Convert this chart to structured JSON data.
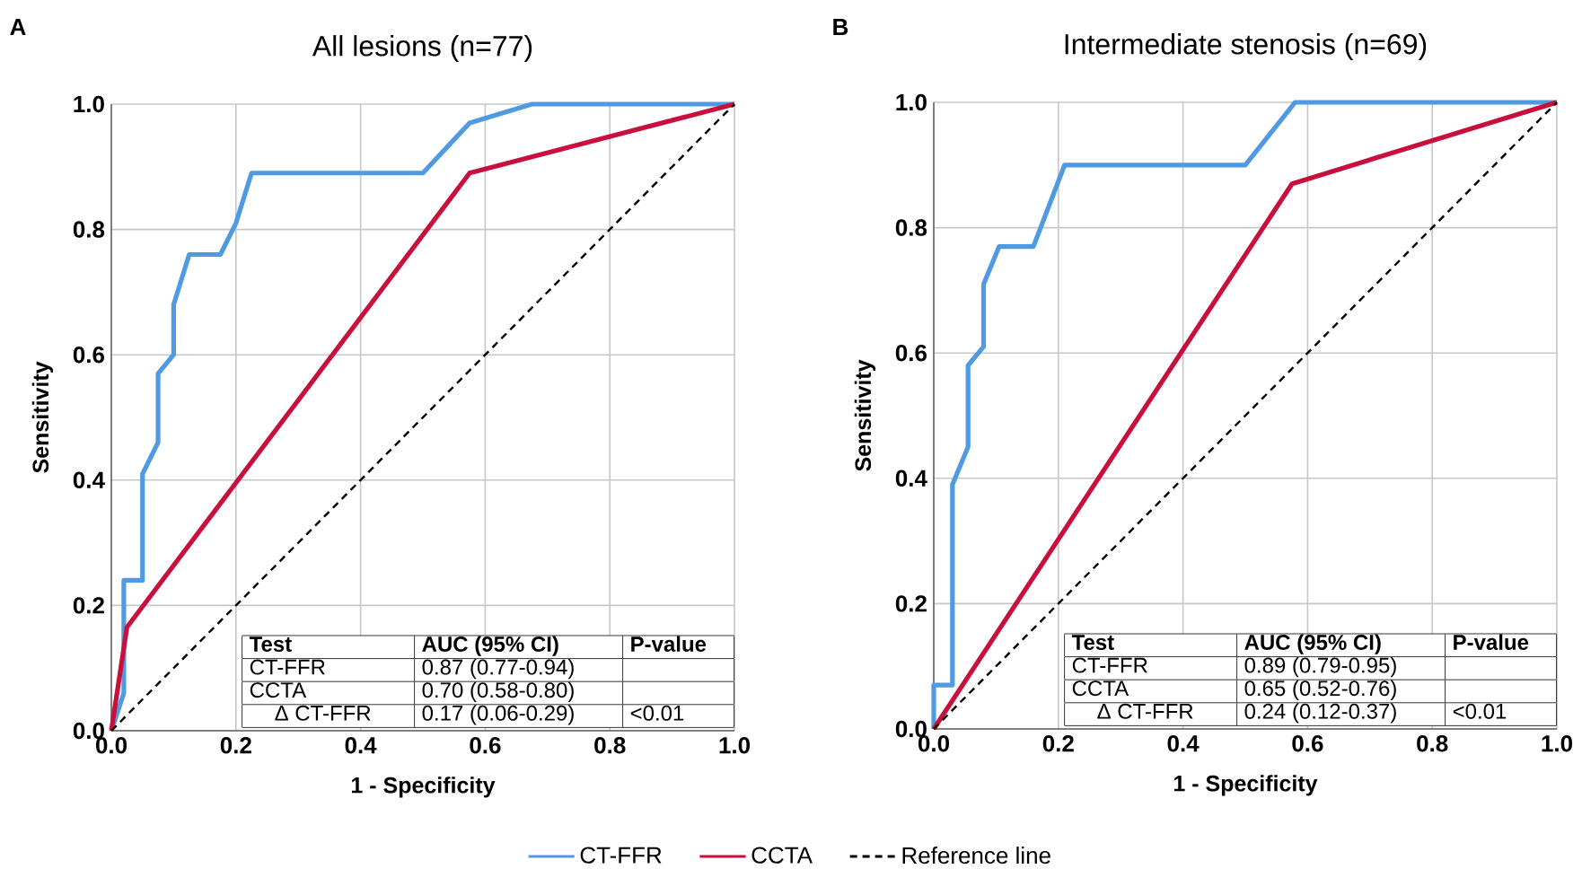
{
  "chart_data": [
    {
      "type": "line",
      "title": "All lesions (n=77)",
      "xlabel": "1 - Specificity",
      "ylabel": "Sensitivity",
      "xlim": [
        0,
        1
      ],
      "ylim": [
        0,
        1
      ],
      "xticks": [
        {
          "value": 0,
          "label": "0.0"
        },
        {
          "value": 0.2,
          "label": "0.2"
        },
        {
          "value": 0.4,
          "label": "0.4"
        },
        {
          "value": 0.6,
          "label": "0.6"
        },
        {
          "value": 0.8,
          "label": "0.8"
        },
        {
          "value": 1,
          "label": "1.0"
        }
      ],
      "yticks": [
        {
          "value": 0,
          "label": "0.0"
        },
        {
          "value": 0.2,
          "label": "0.2"
        },
        {
          "value": 0.4,
          "label": "0.4"
        },
        {
          "value": 0.6,
          "label": "0.6"
        },
        {
          "value": 0.8,
          "label": "0.8"
        },
        {
          "value": 1,
          "label": "1.0"
        }
      ],
      "grid": true,
      "legend": "bottom",
      "series": [
        {
          "name": "CT-FFR",
          "color": "#4f9ae2",
          "x": [
            0,
            0.02,
            0.02,
            0.05,
            0.05,
            0.075,
            0.075,
            0.1,
            0.1,
            0.125,
            0.175,
            0.2,
            0.225,
            0.5,
            0.575,
            0.675,
            1
          ],
          "values": [
            0,
            0.06,
            0.24,
            0.24,
            0.41,
            0.46,
            0.57,
            0.6,
            0.68,
            0.76,
            0.76,
            0.81,
            0.89,
            0.89,
            0.97,
            1,
            1
          ]
        },
        {
          "name": "CCTA",
          "color": "#c9103c",
          "x": [
            0,
            0.025,
            0.575,
            1
          ],
          "values": [
            0,
            0.165,
            0.89,
            1
          ]
        },
        {
          "name": "Reference line",
          "color": "#000000",
          "line_style": "dashed",
          "x": [
            0,
            1
          ],
          "values": [
            0,
            1
          ]
        }
      ],
      "annotations": [
        "A",
        "Test",
        "AUC (95% CI)",
        "P-value",
        "CT-FFR",
        "0.87 (0.77-0.94)",
        "CCTA",
        "0.70 (0.58-0.80)",
        "Δ CT-FFR",
        "0.17 (0.06-0.29)",
        "<0.01"
      ]
    },
    {
      "type": "line",
      "title": "Intermediate stenosis (n=69)",
      "xlabel": "1 - Specificity",
      "ylabel": "Sensitivity",
      "xlim": [
        0,
        1
      ],
      "ylim": [
        0,
        1
      ],
      "xticks": [
        {
          "value": 0,
          "label": "0.0"
        },
        {
          "value": 0.2,
          "label": "0.2"
        },
        {
          "value": 0.4,
          "label": "0.4"
        },
        {
          "value": 0.6,
          "label": "0.6"
        },
        {
          "value": 0.8,
          "label": "0.8"
        },
        {
          "value": 1,
          "label": "1.0"
        }
      ],
      "yticks": [
        {
          "value": 0,
          "label": "0.0"
        },
        {
          "value": 0.2,
          "label": "0.2"
        },
        {
          "value": 0.4,
          "label": "0.4"
        },
        {
          "value": 0.6,
          "label": "0.6"
        },
        {
          "value": 0.8,
          "label": "0.8"
        },
        {
          "value": 1,
          "label": "1.0"
        }
      ],
      "grid": true,
      "series": [
        {
          "color": "#4f9ae2",
          "x": [
            0,
            0,
            0.03,
            0.03,
            0.055,
            0.055,
            0.08,
            0.08,
            0.105,
            0.16,
            0.21,
            0.5,
            0.58,
            1
          ],
          "values": [
            0,
            0.07,
            0.07,
            0.39,
            0.45,
            0.58,
            0.61,
            0.71,
            0.77,
            0.77,
            0.9,
            0.9,
            1,
            1
          ]
        },
        {
          "color": "#c9103c",
          "x": [
            0,
            0.575,
            1
          ],
          "values": [
            0,
            0.87,
            1
          ]
        },
        {
          "color": "#000000",
          "line_style": "dashed",
          "x": [
            0,
            1
          ],
          "values": [
            0,
            1
          ]
        }
      ],
      "annotations": [
        "B",
        "Test",
        "AUC (95% CI)",
        "P-value",
        "CT-FFR",
        "0.89 (0.79-0.95)",
        "CCTA",
        "0.65 (0.52-0.76)",
        "Δ CT-FFR",
        "0.24 (0.12-0.37)",
        "<0.01"
      ]
    }
  ]
}
